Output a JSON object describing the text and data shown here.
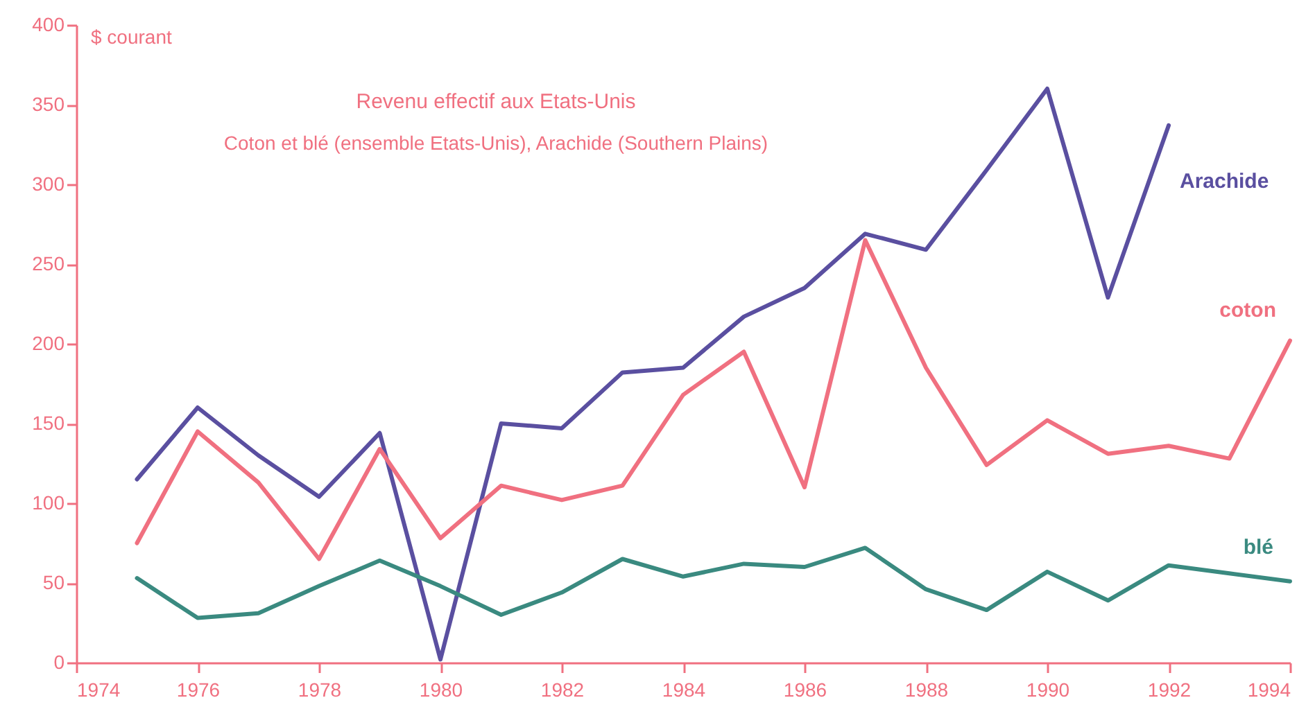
{
  "chart_data": {
    "type": "line",
    "title": "Revenu effectif aux Etats-Unis",
    "subtitle": "Coton et blé (ensemble Etats-Unis), Arachide (Southern Plains)",
    "ylabel": "$ courant",
    "x": [
      1975,
      1976,
      1977,
      1978,
      1979,
      1980,
      1981,
      1982,
      1983,
      1984,
      1985,
      1986,
      1987,
      1988,
      1989,
      1990,
      1991,
      1992,
      1993,
      1994
    ],
    "series": [
      {
        "name": "Arachide",
        "color": "#5a4fa0",
        "values": [
          115,
          160,
          130,
          104,
          144,
          2,
          150,
          147,
          182,
          185,
          217,
          235,
          269,
          259,
          309,
          360,
          229,
          337,
          null,
          null
        ]
      },
      {
        "name": "coton",
        "color": "#f07080",
        "values": [
          75,
          145,
          113,
          65,
          134,
          78,
          111,
          102,
          111,
          168,
          195,
          110,
          265,
          185,
          124,
          152,
          131,
          136,
          128,
          202
        ]
      },
      {
        "name": "blé",
        "color": "#3a8a80",
        "values": [
          53,
          28,
          31,
          48,
          64,
          48,
          30,
          44,
          65,
          54,
          62,
          60,
          72,
          46,
          33,
          57,
          39,
          61,
          56,
          51
        ]
      }
    ],
    "xlim": [
      1974,
      1994
    ],
    "xticks": [
      1974,
      1976,
      1978,
      1980,
      1982,
      1984,
      1986,
      1988,
      1990,
      1992,
      1994
    ],
    "ylim": [
      0,
      400
    ],
    "yticks": [
      0,
      50,
      100,
      150,
      200,
      250,
      300,
      350,
      400
    ],
    "grid": false,
    "legend": false,
    "marker": "none",
    "line_style": "solid"
  }
}
